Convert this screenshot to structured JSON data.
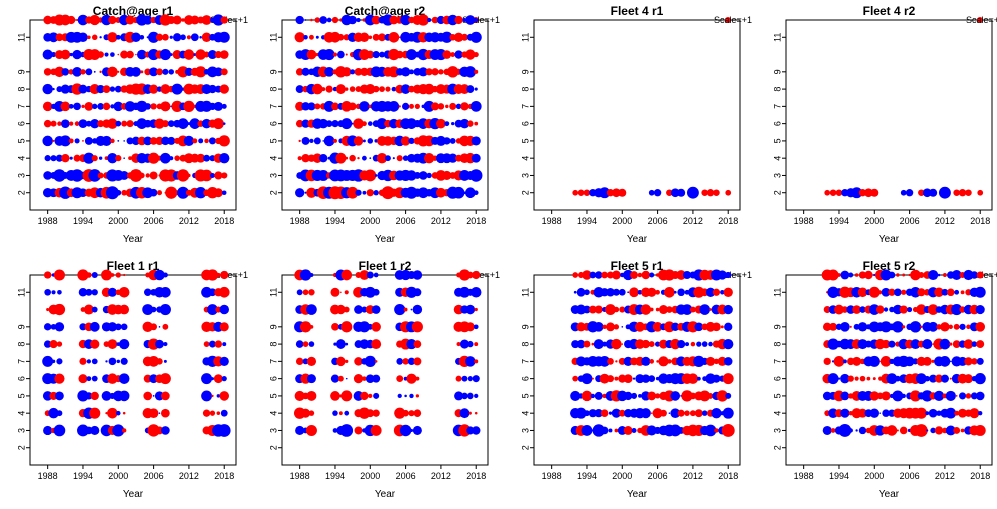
{
  "colors": {
    "positive": "#ff0000",
    "negative": "#0000ff",
    "frame": "#000000"
  },
  "chart_data": [
    {
      "type": "scatter",
      "title": "Catch@age r1",
      "xlabel": "Year",
      "xticks": [
        1988,
        1994,
        2000,
        2006,
        2012,
        2018
      ],
      "yticks": [
        2,
        3,
        4,
        5,
        6,
        7,
        8,
        9,
        11
      ],
      "xlim": [
        1985,
        2020
      ],
      "ylim": [
        1,
        12
      ],
      "scale_label": "Scale=+1",
      "year_range": [
        1988,
        2018
      ],
      "ages": [
        2,
        3,
        4,
        5,
        6,
        7,
        8,
        9,
        10,
        11,
        12
      ],
      "seed": 11
    },
    {
      "type": "scatter",
      "title": "Catch@age r2",
      "xlabel": "Year",
      "xticks": [
        1988,
        1994,
        2000,
        2006,
        2012,
        2018
      ],
      "yticks": [
        2,
        3,
        4,
        5,
        6,
        7,
        8,
        9,
        11
      ],
      "xlim": [
        1985,
        2020
      ],
      "ylim": [
        1,
        12
      ],
      "scale_label": "Scale=+1",
      "year_range": [
        1988,
        2018
      ],
      "ages": [
        2,
        3,
        4,
        5,
        6,
        7,
        8,
        9,
        10,
        11,
        12
      ],
      "seed": 23
    },
    {
      "type": "scatter",
      "title": "Fleet 4 r1",
      "xlabel": "Year",
      "xticks": [
        1988,
        1994,
        2000,
        2006,
        2012,
        2018
      ],
      "yticks": [
        2,
        3,
        4,
        5,
        6,
        7,
        8,
        9,
        11
      ],
      "xlim": [
        1985,
        2020
      ],
      "ylim": [
        1,
        12
      ],
      "scale_label": "Scale=+1",
      "points": [
        [
          1992,
          2,
          0.3
        ],
        [
          1993,
          2,
          0.4
        ],
        [
          1994,
          2,
          0.4
        ],
        [
          1995,
          2,
          -0.5
        ],
        [
          1996,
          2,
          -0.8
        ],
        [
          1997,
          2,
          -1.1
        ],
        [
          1998,
          2,
          0.5
        ],
        [
          1999,
          2,
          0.7
        ],
        [
          2000,
          2,
          0.6
        ],
        [
          2005,
          2,
          -0.3
        ],
        [
          2006,
          2,
          -0.5
        ],
        [
          2008,
          2,
          0.4
        ],
        [
          2009,
          2,
          -0.7
        ],
        [
          2010,
          2,
          -0.6
        ],
        [
          2012,
          2,
          -1.3
        ],
        [
          2014,
          2,
          0.4
        ],
        [
          2015,
          2,
          0.5
        ],
        [
          2016,
          2,
          0.4
        ],
        [
          2018,
          2,
          0.3
        ]
      ]
    },
    {
      "type": "scatter",
      "title": "Fleet 4 r2",
      "xlabel": "Year",
      "xticks": [
        1988,
        1994,
        2000,
        2006,
        2012,
        2018
      ],
      "yticks": [
        2,
        3,
        4,
        5,
        6,
        7,
        8,
        9,
        11
      ],
      "xlim": [
        1985,
        2020
      ],
      "ylim": [
        1,
        12
      ],
      "scale_label": "Scale=+1",
      "points": [
        [
          1992,
          2,
          0.3
        ],
        [
          1993,
          2,
          0.4
        ],
        [
          1994,
          2,
          0.4
        ],
        [
          1995,
          2,
          -0.5
        ],
        [
          1996,
          2,
          -0.8
        ],
        [
          1997,
          2,
          -1.1
        ],
        [
          1998,
          2,
          0.5
        ],
        [
          1999,
          2,
          0.7
        ],
        [
          2000,
          2,
          0.6
        ],
        [
          2005,
          2,
          -0.3
        ],
        [
          2006,
          2,
          -0.5
        ],
        [
          2008,
          2,
          0.4
        ],
        [
          2009,
          2,
          -0.7
        ],
        [
          2010,
          2,
          -0.6
        ],
        [
          2012,
          2,
          -1.3
        ],
        [
          2014,
          2,
          0.4
        ],
        [
          2015,
          2,
          0.5
        ],
        [
          2016,
          2,
          0.4
        ],
        [
          2018,
          2,
          0.3
        ]
      ]
    },
    {
      "type": "scatter",
      "title": "Fleet 1 r1",
      "xlabel": "Year",
      "xticks": [
        1988,
        1994,
        2000,
        2006,
        2012,
        2018
      ],
      "yticks": [
        2,
        3,
        4,
        5,
        6,
        7,
        8,
        9,
        11
      ],
      "xlim": [
        1985,
        2020
      ],
      "ylim": [
        1,
        12
      ],
      "scale_label": "Scale=+1",
      "year_groups": [
        [
          1988,
          1989,
          1990
        ],
        [
          1994,
          1995,
          1996
        ],
        [
          1998,
          1999,
          2000,
          2001
        ],
        [
          2005,
          2006,
          2007,
          2008
        ],
        [
          2015,
          2016,
          2017,
          2018
        ]
      ],
      "ages": [
        3,
        4,
        5,
        6,
        7,
        8,
        9,
        10,
        11,
        12
      ],
      "seed": 37
    },
    {
      "type": "scatter",
      "title": "Fleet 1 r2",
      "xlabel": "Year",
      "xticks": [
        1988,
        1994,
        2000,
        2006,
        2012,
        2018
      ],
      "yticks": [
        2,
        3,
        4,
        5,
        6,
        7,
        8,
        9,
        11
      ],
      "xlim": [
        1985,
        2020
      ],
      "ylim": [
        1,
        12
      ],
      "scale_label": "Scale=+1",
      "year_groups": [
        [
          1988,
          1989,
          1990
        ],
        [
          1994,
          1995,
          1996
        ],
        [
          1998,
          1999,
          2000,
          2001
        ],
        [
          2005,
          2006,
          2007,
          2008
        ],
        [
          2015,
          2016,
          2017,
          2018
        ]
      ],
      "ages": [
        3,
        4,
        5,
        6,
        7,
        8,
        9,
        10,
        11,
        12
      ],
      "seed": 41
    },
    {
      "type": "scatter",
      "title": "Fleet 5 r1",
      "xlabel": "Year",
      "xticks": [
        1988,
        1994,
        2000,
        2006,
        2012,
        2018
      ],
      "yticks": [
        2,
        3,
        4,
        5,
        6,
        7,
        8,
        9,
        11
      ],
      "xlim": [
        1985,
        2020
      ],
      "ylim": [
        1,
        12
      ],
      "scale_label": "Scale=+1",
      "year_range": [
        1992,
        2018
      ],
      "ages": [
        3,
        4,
        5,
        6,
        7,
        8,
        9,
        10,
        11,
        12
      ],
      "seed": 53
    },
    {
      "type": "scatter",
      "title": "Fleet 5 r2",
      "xlabel": "Year",
      "xticks": [
        1988,
        1994,
        2000,
        2006,
        2012,
        2018
      ],
      "yticks": [
        2,
        3,
        4,
        5,
        6,
        7,
        8,
        9,
        11
      ],
      "xlim": [
        1985,
        2020
      ],
      "ylim": [
        1,
        12
      ],
      "scale_label": "Scale=+1",
      "year_range": [
        1992,
        2018
      ],
      "ages": [
        3,
        4,
        5,
        6,
        7,
        8,
        9,
        10,
        11,
        12
      ],
      "seed": 59
    }
  ]
}
